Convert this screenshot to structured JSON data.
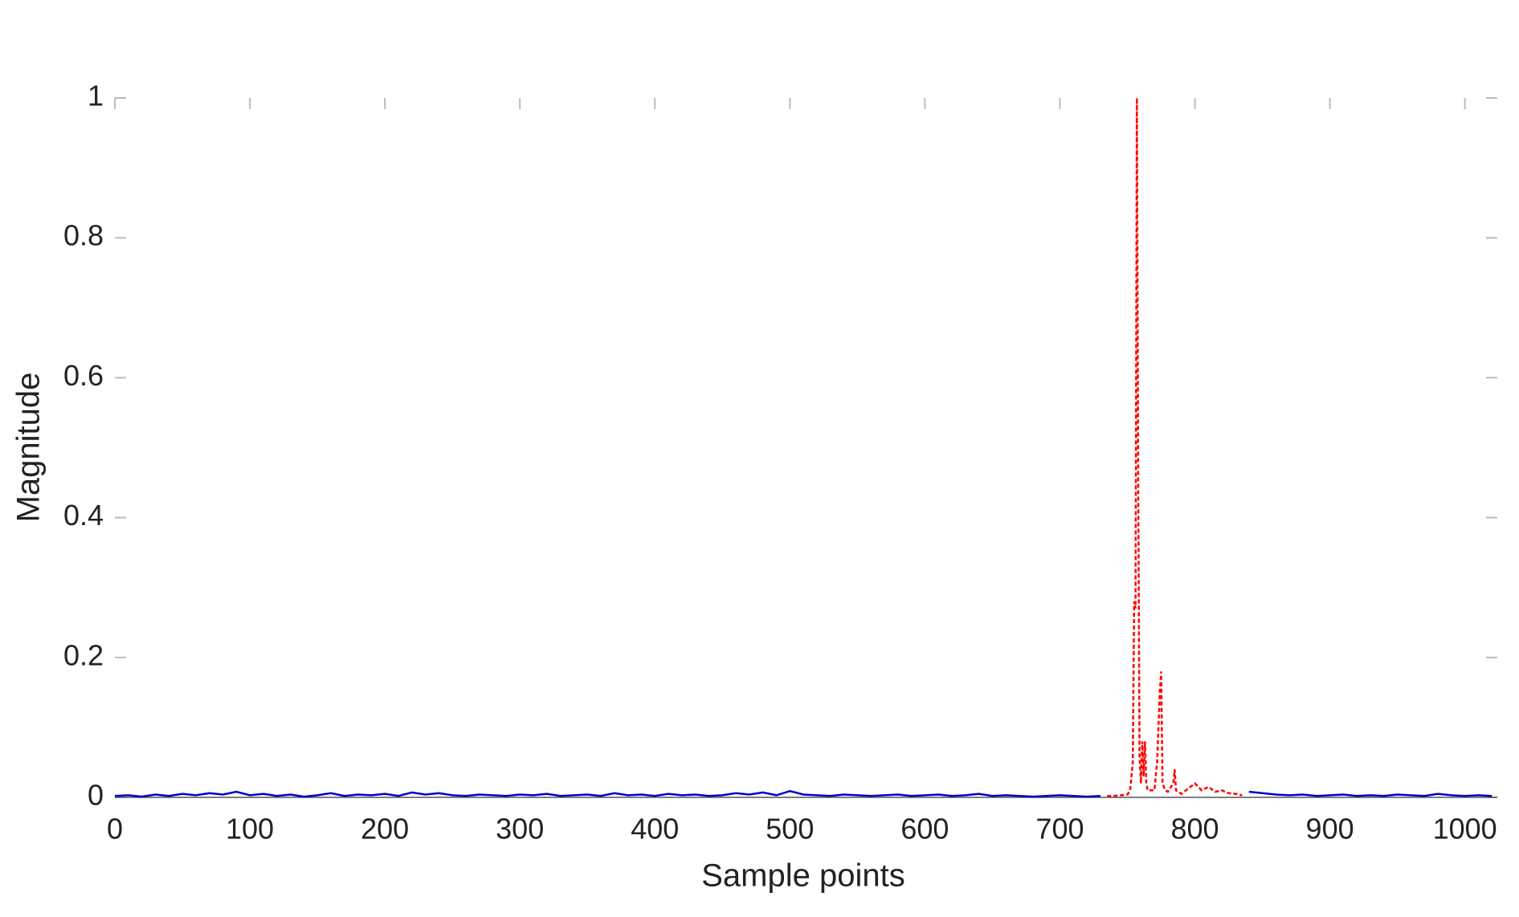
{
  "chart_data": {
    "type": "line",
    "xlabel": "Sample points",
    "ylabel": "Magnitude",
    "xlim": [
      0,
      1024
    ],
    "ylim": [
      0,
      1
    ],
    "xticks": [
      0,
      100,
      200,
      300,
      400,
      500,
      600,
      700,
      800,
      900,
      1000
    ],
    "yticks": [
      0,
      0.2,
      0.4,
      0.6,
      0.8,
      1
    ],
    "grid": false,
    "series": [
      {
        "color": "#0000cc",
        "line_style": "solid",
        "x": [
          0,
          10,
          20,
          30,
          40,
          50,
          60,
          70,
          80,
          90,
          100,
          110,
          120,
          130,
          140,
          150,
          160,
          170,
          180,
          190,
          200,
          210,
          220,
          230,
          240,
          250,
          260,
          270,
          280,
          290,
          300,
          310,
          320,
          330,
          340,
          350,
          360,
          370,
          380,
          390,
          400,
          410,
          420,
          430,
          440,
          450,
          460,
          470,
          480,
          490,
          500,
          510,
          520,
          530,
          540,
          550,
          560,
          570,
          580,
          590,
          600,
          610,
          620,
          630,
          640,
          650,
          660,
          670,
          680,
          690,
          700,
          710,
          720,
          730,
          735,
          840,
          850,
          860,
          870,
          880,
          890,
          900,
          910,
          920,
          930,
          940,
          950,
          960,
          970,
          980,
          990,
          1000,
          1010,
          1020
        ],
        "values": [
          0.002,
          0.003,
          0.001,
          0.004,
          0.002,
          0.005,
          0.003,
          0.006,
          0.004,
          0.008,
          0.003,
          0.005,
          0.002,
          0.004,
          0.001,
          0.003,
          0.006,
          0.002,
          0.004,
          0.003,
          0.005,
          0.002,
          0.007,
          0.004,
          0.006,
          0.003,
          0.002,
          0.004,
          0.003,
          0.002,
          0.004,
          0.003,
          0.005,
          0.002,
          0.003,
          0.004,
          0.002,
          0.006,
          0.003,
          0.004,
          0.002,
          0.005,
          0.003,
          0.004,
          0.002,
          0.003,
          0.006,
          0.004,
          0.007,
          0.003,
          0.009,
          0.004,
          0.003,
          0.002,
          0.004,
          0.003,
          0.002,
          0.003,
          0.004,
          0.002,
          0.003,
          0.004,
          0.002,
          0.003,
          0.005,
          0.002,
          0.003,
          0.002,
          0.001,
          0.002,
          0.003,
          0.002,
          0.001,
          0.002,
          null,
          0.008,
          0.006,
          0.004,
          0.003,
          0.004,
          0.002,
          0.003,
          0.004,
          0.002,
          0.003,
          0.002,
          0.004,
          0.003,
          0.002,
          0.005,
          0.003,
          0.002,
          0.003,
          0.002
        ]
      },
      {
        "color": "#ff0000",
        "line_style": "dashed",
        "x": [
          735,
          740,
          745,
          750,
          752,
          754,
          755,
          756,
          757,
          758,
          759,
          760,
          761,
          762,
          763,
          764,
          765,
          770,
          772,
          774,
          775,
          776,
          778,
          780,
          784,
          785,
          786,
          790,
          800,
          805,
          810,
          815,
          820,
          825,
          830,
          835
        ],
        "values": [
          0.002,
          0.002,
          0.003,
          0.004,
          0.01,
          0.05,
          0.28,
          0.27,
          1.0,
          0.45,
          0.06,
          0.02,
          0.08,
          0.03,
          0.08,
          0.02,
          0.01,
          0.01,
          0.05,
          0.15,
          0.18,
          0.02,
          0.01,
          0.008,
          0.02,
          0.04,
          0.01,
          0.005,
          0.02,
          0.01,
          0.015,
          0.008,
          0.01,
          0.006,
          0.005,
          0.003
        ]
      }
    ]
  }
}
